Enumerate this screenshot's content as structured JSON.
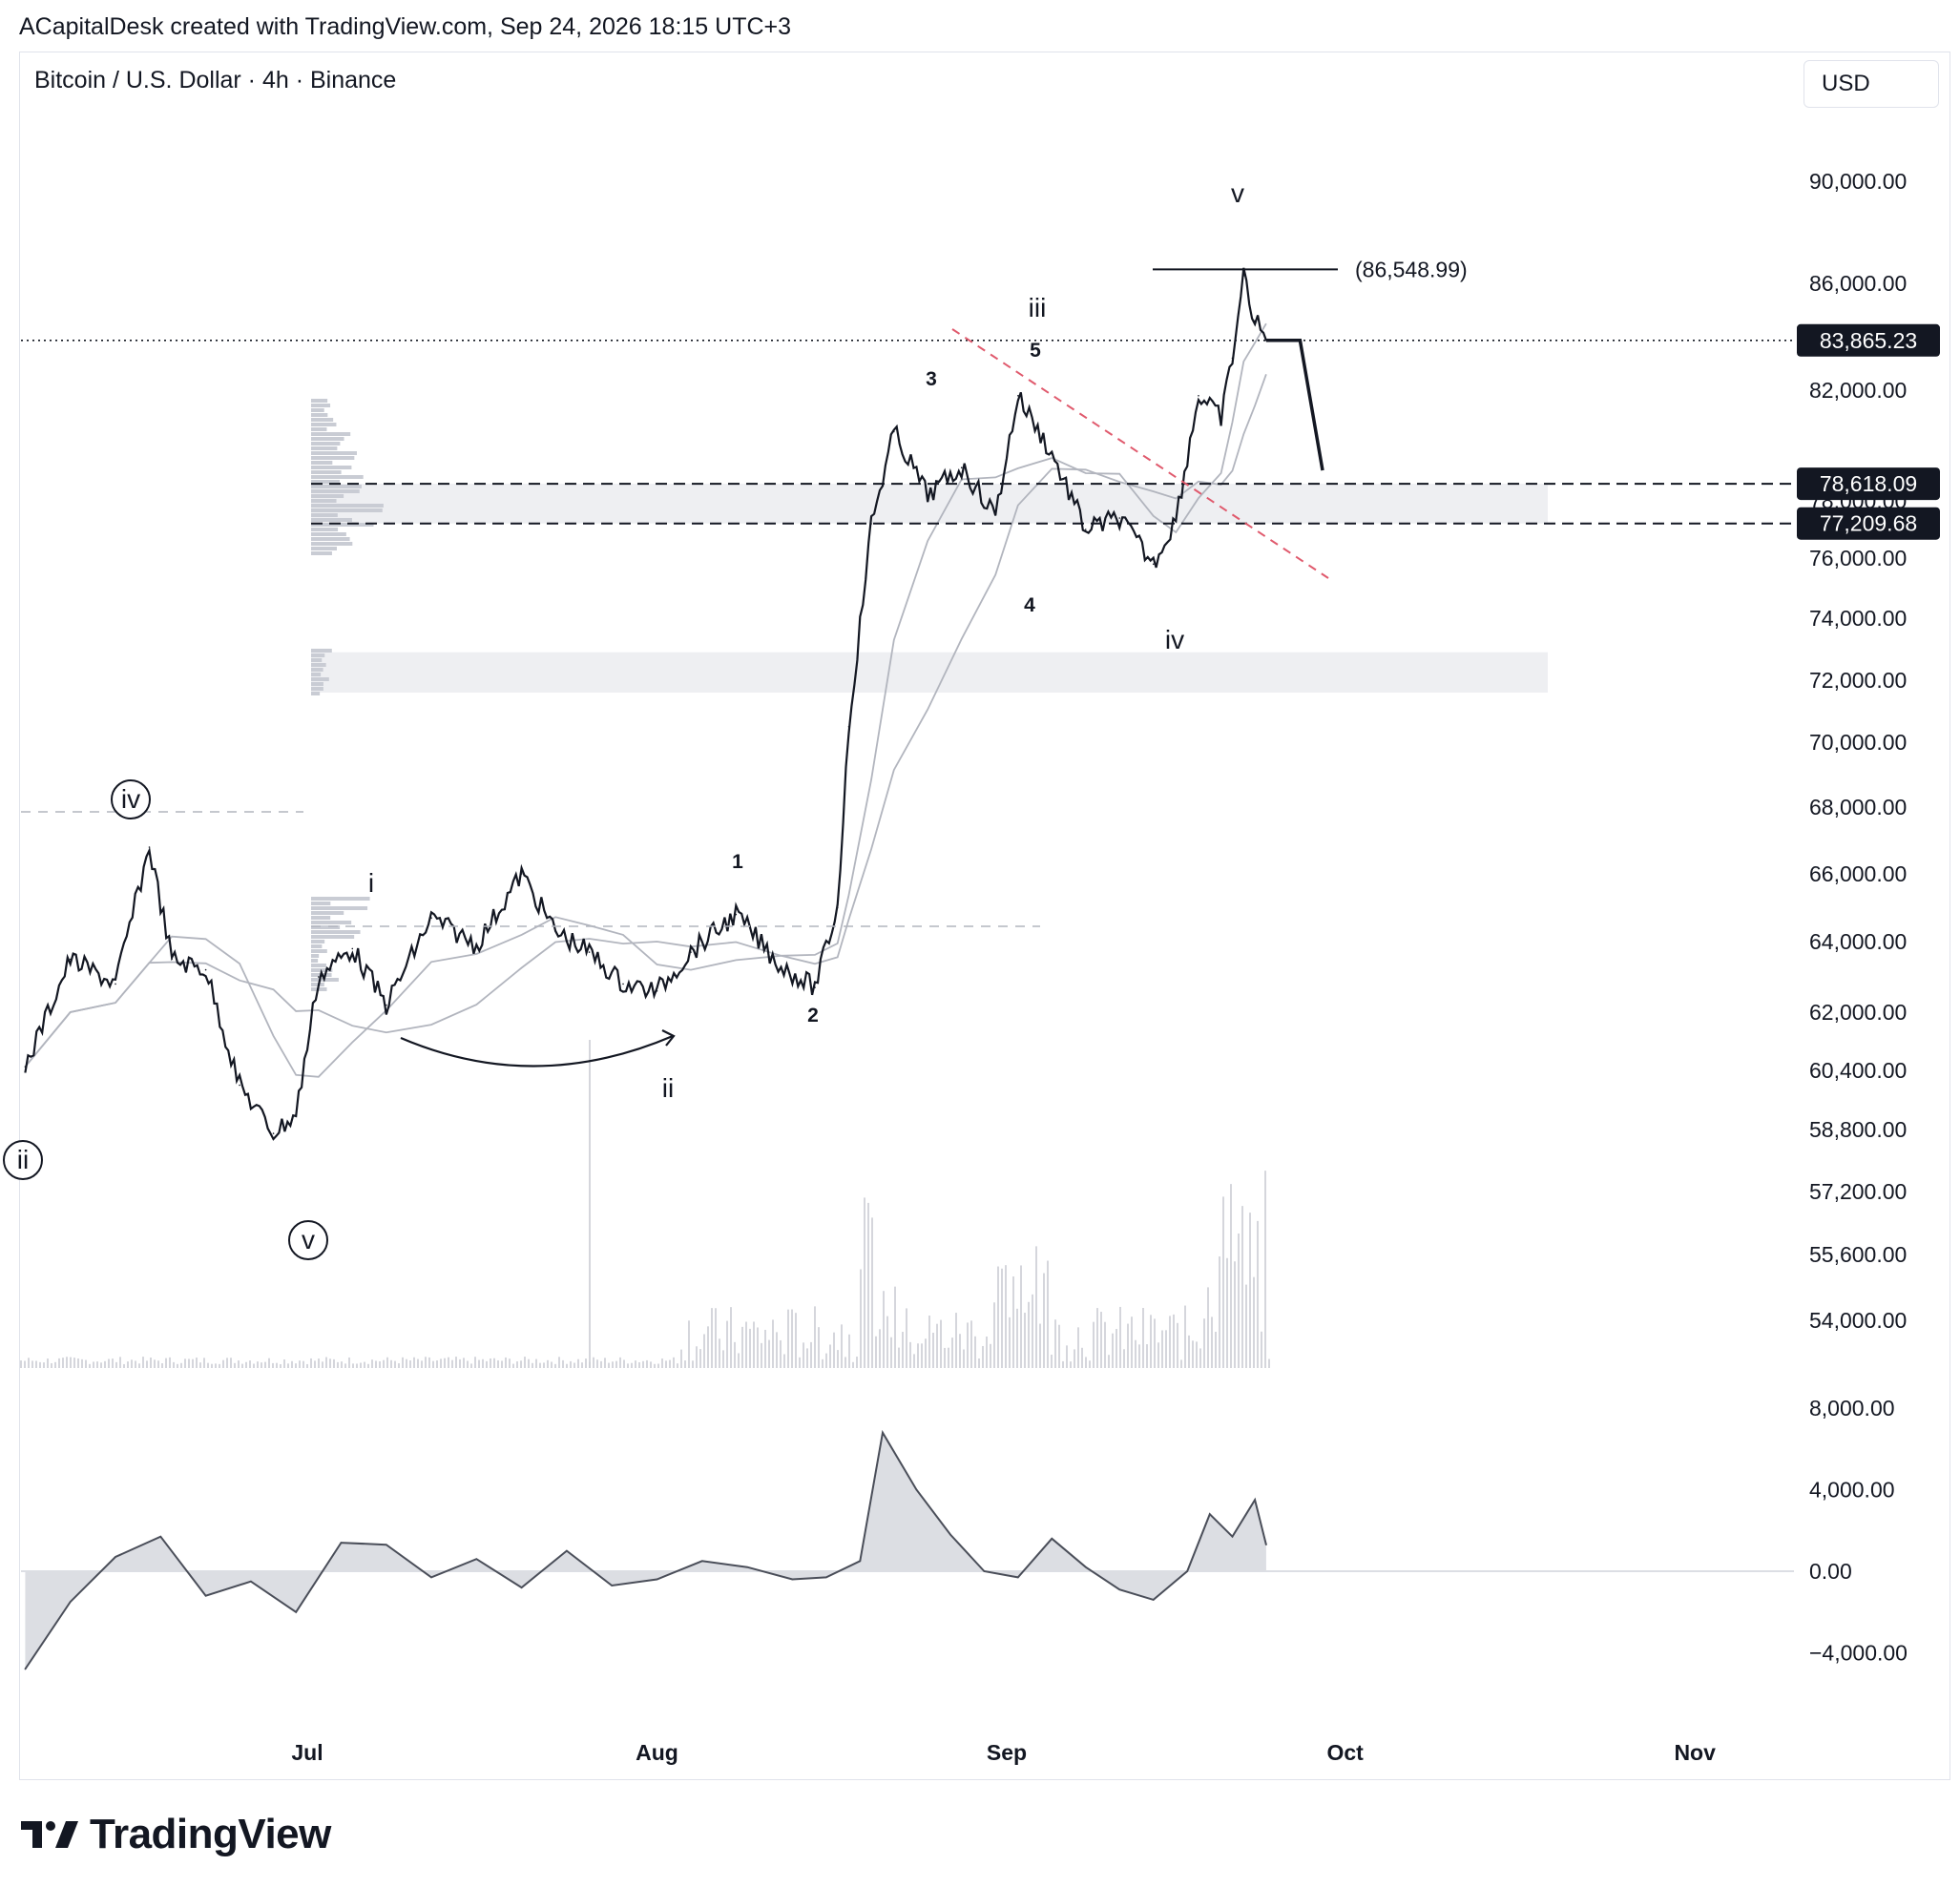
{
  "header": {
    "attribution": "ACapitalDesk created with TradingView.com, Sep 24, 2026 18:15 UTC+3",
    "symbol_title": "Bitcoin / U.S. Dollar · 4h · Binance",
    "currency_button": "USD"
  },
  "footer": {
    "brand": "TradingView"
  },
  "chart_data": {
    "type": "line",
    "title": "Bitcoin / U.S. Dollar · 4h · Binance",
    "price_axis_ticks": [
      "90,000.00",
      "86,000.00",
      "82,000.00",
      "78,000.00",
      "76,000.00",
      "74,000.00",
      "72,000.00",
      "70,000.00",
      "68,000.00",
      "66,000.00",
      "64,000.00",
      "62,000.00",
      "60,400.00",
      "58,800.00",
      "57,200.00",
      "55,600.00",
      "54,000.00"
    ],
    "oscillator_axis_ticks": [
      "8,000.00",
      "4,000.00",
      "0.00",
      "−4,000.00"
    ],
    "time_axis_ticks": [
      "Jul",
      "Aug",
      "Sep",
      "Oct",
      "Nov"
    ],
    "price_tags": [
      {
        "label": "83,865.23",
        "value": 83865.23,
        "meaning": "last price"
      },
      {
        "label": "78,618.09",
        "value": 78618.09
      },
      {
        "label": "77,209.68",
        "value": 77209.68
      }
    ],
    "annotation_high": {
      "label": "(86,548.99)",
      "value": 86548.99
    },
    "elliott_labels": {
      "circled": [
        "ii",
        "iv",
        "v"
      ],
      "minor": [
        "i",
        "ii",
        "iii",
        "iv",
        "v"
      ],
      "sub": [
        "1",
        "2",
        "3",
        "4",
        "5"
      ]
    },
    "price_series": {
      "name": "",
      "x": [
        "Jun 6",
        "Jun 10",
        "Jun 14",
        "Jun 17",
        "Jun 19",
        "Jun 22",
        "Jun 25",
        "Jun 28",
        "Jun 30",
        "Jul 2",
        "Jul 5",
        "Jul 8",
        "Jul 12",
        "Jul 16",
        "Jul 20",
        "Jul 23",
        "Jul 26",
        "Jul 29",
        "Aug 1",
        "Aug 4",
        "Aug 8",
        "Aug 12",
        "Aug 15",
        "Aug 17",
        "Aug 18",
        "Aug 20",
        "Aug 22",
        "Aug 25",
        "Aug 28",
        "Aug 31",
        "Sep 2",
        "Sep 5",
        "Sep 8",
        "Sep 11",
        "Sep 14",
        "Sep 16",
        "Sep 18",
        "Sep 20",
        "Sep 21",
        "Sep 22",
        "Sep 23",
        "Sep 24"
      ],
      "values": [
        60500,
        63500,
        62800,
        66800,
        63500,
        63200,
        60000,
        58700,
        59200,
        63000,
        63800,
        62200,
        64700,
        63900,
        66000,
        64300,
        63700,
        62800,
        62600,
        63700,
        64800,
        63300,
        62700,
        65000,
        70500,
        77200,
        80500,
        78200,
        79200,
        77500,
        81800,
        79700,
        77000,
        77400,
        75800,
        77400,
        81800,
        81000,
        83200,
        86300,
        84600,
        83865
      ]
    },
    "projection": {
      "x": [
        "Sep 24",
        "Sep 27",
        "Sep 29"
      ],
      "values": [
        83865,
        83865,
        79100
      ]
    },
    "volume_profile_zones": [
      {
        "from": 77209.68,
        "to": 78618.09
      },
      {
        "from": 71600,
        "to": 72900
      }
    ],
    "oscillator_series": {
      "name": "",
      "x": [
        "Jun 6",
        "Jun 10",
        "Jun 14",
        "Jun 18",
        "Jun 22",
        "Jun 26",
        "Jun 30",
        "Jul 4",
        "Jul 8",
        "Jul 12",
        "Jul 16",
        "Jul 20",
        "Jul 24",
        "Jul 28",
        "Aug 1",
        "Aug 5",
        "Aug 9",
        "Aug 13",
        "Aug 16",
        "Aug 19",
        "Aug 21",
        "Aug 24",
        "Aug 27",
        "Aug 30",
        "Sep 2",
        "Sep 5",
        "Sep 8",
        "Sep 11",
        "Sep 14",
        "Sep 17",
        "Sep 19",
        "Sep 21",
        "Sep 23",
        "Sep 24"
      ],
      "values": [
        -4800,
        -1500,
        700,
        1700,
        -1200,
        -500,
        -2000,
        1400,
        1300,
        -300,
        600,
        -800,
        1000,
        -700,
        -400,
        500,
        200,
        -400,
        -300,
        500,
        6800,
        4000,
        1800,
        0,
        -300,
        1600,
        200,
        -900,
        -1400,
        0,
        2800,
        1700,
        3500,
        1300
      ]
    },
    "xlim": [
      "Jun 6",
      "Nov 6"
    ],
    "ylim": [
      54000,
      90000
    ],
    "oscillator_ylim": [
      -4000,
      8000
    ],
    "colors": {
      "price_line": "#131722",
      "ma_line": "#b2b5be",
      "trendline": "#e05a6d",
      "tag_bg": "#131722",
      "profile": "#c9ccd4",
      "zone": "#eeeff2"
    }
  }
}
